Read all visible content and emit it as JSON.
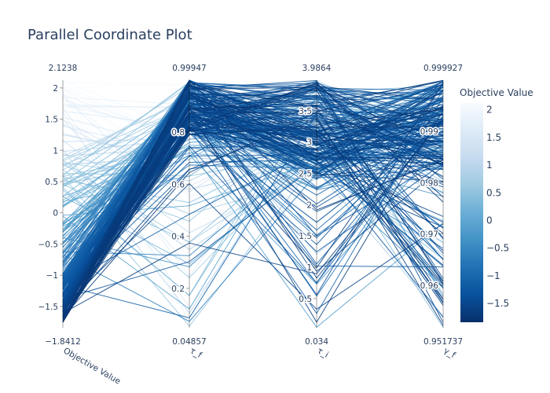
{
  "chart_data": {
    "type": "parallel_coordinates",
    "title": "Parallel Coordinate Plot",
    "colorbar": {
      "title": "Objective Value",
      "range": [
        -1.8412,
        2.1238
      ],
      "ticks": [
        2,
        1.5,
        1,
        0.5,
        0,
        -0.5,
        -1,
        -1.5
      ],
      "tick_labels": [
        "2",
        "1.5",
        "1",
        "0.5",
        "0",
        "−0.5",
        "−1",
        "−1.5"
      ],
      "colorscale": [
        "#08306b",
        "#08519c",
        "#2171b5",
        "#4292c6",
        "#6baed6",
        "#9ecae1",
        "#c6dbef",
        "#deebf7",
        "#f7fbff"
      ]
    },
    "axes": [
      {
        "label": "Objective Value",
        "range": [
          -1.8412,
          2.1238
        ],
        "range_labels": [
          "−1.8412",
          "2.1238"
        ],
        "ticks": [
          2,
          1.5,
          1,
          0.5,
          0,
          -0.5,
          -1,
          -1.5
        ],
        "tick_labels": [
          "2",
          "1.5",
          "1",
          "0.5",
          "0",
          "−0.5",
          "−1",
          "−1.5"
        ]
      },
      {
        "label": "τ_f",
        "range": [
          0.04857,
          0.99947
        ],
        "range_labels": [
          "0.04857",
          "0.99947"
        ],
        "ticks": [
          0.8,
          0.6,
          0.4,
          0.2
        ],
        "tick_labels": [
          "0.8",
          "0.6",
          "0.4",
          "0.2"
        ]
      },
      {
        "label": "τ_i",
        "range": [
          0.034,
          3.9864
        ],
        "range_labels": [
          "0.034",
          "3.9864"
        ],
        "ticks": [
          3.5,
          3,
          2.5,
          2,
          1.5,
          1,
          0.5
        ],
        "tick_labels": [
          "3.5",
          "3",
          "2.5",
          "2",
          "1.5",
          "1",
          "0.5"
        ]
      },
      {
        "label": "γ_f",
        "range": [
          0.951737,
          0.999927
        ],
        "range_labels": [
          "0.951737",
          "0.999927"
        ],
        "ticks": [
          0.99,
          0.98,
          0.97,
          0.96
        ],
        "tick_labels": [
          "0.99",
          "0.98",
          "0.97",
          "0.96"
        ]
      }
    ]
  }
}
